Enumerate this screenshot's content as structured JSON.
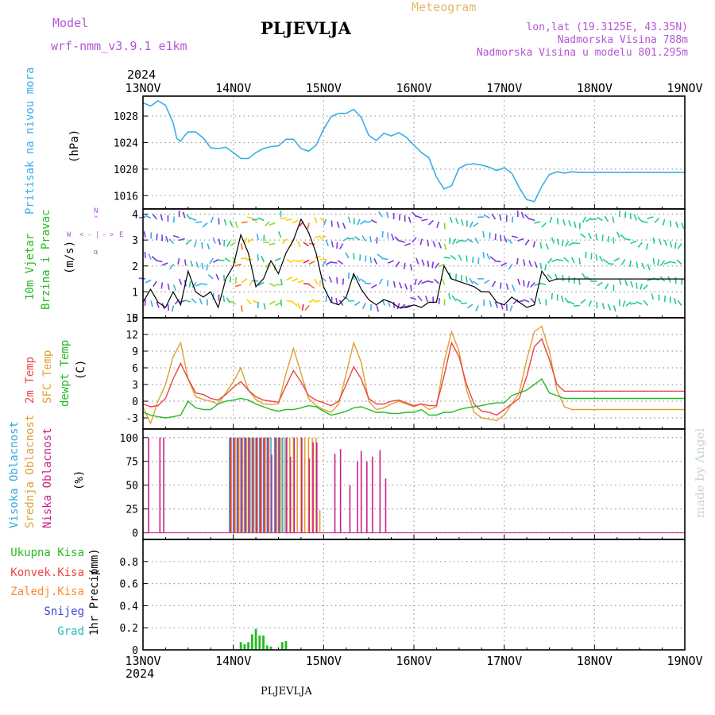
{
  "header": {
    "model_label": "Model",
    "model_name": "wrf-nmm_v3.9.1  e1km",
    "station_title": "PLJEVLJA",
    "meteogram_label": "Meteogram",
    "coords": "lon,lat (19.3125E, 43.35N)",
    "elevation": "Nadmorska Visina 788m",
    "model_elevation": "Nadmorska Visina u modelu 801.295m"
  },
  "time_axis": {
    "year": "2024",
    "dates": [
      "13NOV",
      "14NOV",
      "15NOV",
      "16NOV",
      "17NOV",
      "18NOV",
      "19NOV"
    ]
  },
  "footer": {
    "station": "PLJEVLJA",
    "credit": "made by Angel"
  },
  "wind_legend": {
    "n": "N",
    "e": "E",
    "w": "W",
    "s": "S",
    "arrow_up": "^",
    "arrow_down": "<",
    "sep": "|",
    "dash": "-",
    "arrow_right": ">",
    "alpha": "α"
  },
  "colors": {
    "pressure": "#3aaee6",
    "wind_title": "#22bb22",
    "temp2m": "#ee4444",
    "sfc": "#e0a030",
    "dew": "#22bb22",
    "cloud_high": "#33aadd",
    "cloud_mid": "#e0a030",
    "cloud_low": "#cc2288",
    "precip_total": "#22bb22",
    "precip_conv": "#ee4444",
    "precip_frozen": "#ff8833",
    "precip_snow": "#4444dd",
    "precip_hail": "#22bbbb",
    "model": "#b455d6",
    "meteogram": "#e6b866",
    "credit": "#c8d8c8"
  },
  "chart_data": [
    {
      "type": "line",
      "panel": "pressure",
      "title": "Pritisak na nivou mora",
      "unit": "(hPa)",
      "x_unit": "hours from 13NOV 00UTC",
      "ylim": [
        1014,
        1031
      ],
      "yticks": [
        1016,
        1020,
        1024,
        1028
      ],
      "grid": true,
      "series": [
        {
          "name": "Pritisak na nivou mora",
          "x": [
            0,
            2,
            4,
            6,
            8,
            9,
            10,
            11,
            12,
            14,
            16,
            18,
            20,
            22,
            24,
            26,
            28,
            30,
            32,
            34,
            36,
            38,
            40,
            42,
            44,
            46,
            48,
            50,
            52,
            54,
            56,
            58,
            60,
            62,
            64,
            66,
            68,
            70,
            72,
            74,
            76,
            78,
            80,
            82,
            84,
            86,
            88,
            90,
            92,
            94,
            96,
            98,
            100,
            102,
            104,
            106,
            108,
            110,
            112,
            114,
            116,
            118,
            120,
            122,
            124,
            126,
            128,
            130,
            132,
            134,
            136,
            138,
            140,
            142,
            144
          ],
          "values": [
            1030,
            1029.5,
            1030.3,
            1029.6,
            1027,
            1024.6,
            1024.2,
            1025,
            1025.6,
            1025.6,
            1024.7,
            1023.2,
            1023.1,
            1023.3,
            1022.5,
            1021.6,
            1021.6,
            1022.5,
            1023.1,
            1023.4,
            1023.5,
            1024.5,
            1024.5,
            1023.1,
            1022.7,
            1023.6,
            1026,
            1027.9,
            1028.4,
            1028.4,
            1029,
            1027.8,
            1025.1,
            1024.3,
            1025.4,
            1025,
            1025.5,
            1024.8,
            1023.6,
            1022.5,
            1021.7,
            1018.8,
            1017,
            1017.5,
            1020.1,
            1020.7,
            1020.8,
            1020.6,
            1020.3,
            1019.8,
            1020.2,
            1019.4,
            1017.2,
            1015.4,
            1015.1,
            1017.4,
            1019.2,
            1019.6,
            1019.4,
            1019.6,
            1019.5,
            1019.5,
            1019.5,
            1019.5,
            1019.5,
            1019.5,
            1019.5,
            1019.5,
            1019.5,
            1019.5,
            1019.5,
            1019.5,
            1019.5,
            1019.5,
            1019.5
          ]
        }
      ]
    },
    {
      "type": "line",
      "panel": "wind",
      "title": "10m Vjetar Brzina i Pravac",
      "title_lines": [
        "10m Vjetar",
        "Brzina i Pravac"
      ],
      "unit": "(m/s)",
      "ylim": [
        0,
        4.2
      ],
      "yticks": [
        0,
        1,
        2,
        3,
        4
      ],
      "grid": true,
      "series": [
        {
          "name": "brzina",
          "x": [
            0,
            2,
            4,
            6,
            8,
            10,
            12,
            14,
            16,
            18,
            20,
            22,
            24,
            26,
            28,
            30,
            32,
            34,
            36,
            38,
            40,
            42,
            44,
            46,
            48,
            50,
            52,
            54,
            56,
            58,
            60,
            62,
            64,
            66,
            68,
            70,
            72,
            74,
            76,
            78,
            80,
            82,
            84,
            86,
            88,
            90,
            92,
            94,
            96,
            98,
            100,
            102,
            104,
            106,
            108,
            110,
            112,
            114,
            116,
            118,
            120,
            122,
            124,
            126,
            128,
            130,
            132,
            134,
            136,
            138,
            140,
            142,
            144
          ],
          "values": [
            0.6,
            1.1,
            0.6,
            0.4,
            1.0,
            0.5,
            1.8,
            1.0,
            0.8,
            1.0,
            0.4,
            1.5,
            2.0,
            3.2,
            2.5,
            1.2,
            1.5,
            2.2,
            1.7,
            2.5,
            3.0,
            3.8,
            3.3,
            2.5,
            1.2,
            0.6,
            0.5,
            0.8,
            1.7,
            1.1,
            0.7,
            0.5,
            0.7,
            0.6,
            0.4,
            0.4,
            0.5,
            0.4,
            0.6,
            0.6,
            2.0,
            1.5,
            1.4,
            1.3,
            1.2,
            1.0,
            1.0,
            0.6,
            0.5,
            0.8,
            0.6,
            0.4,
            0.5,
            1.8,
            1.4,
            1.5,
            1.5,
            1.5,
            1.5,
            1.5,
            1.5,
            1.5,
            1.5,
            1.5,
            1.5,
            1.5,
            1.5,
            1.5,
            1.5,
            1.5,
            1.5,
            1.5,
            1.5
          ]
        }
      ]
    },
    {
      "type": "line",
      "panel": "temperature",
      "title": "2m Temp / SFC Temp / dewpt Temp",
      "unit": "(C)",
      "ylim": [
        -5,
        15
      ],
      "yticks": [
        -3,
        0,
        3,
        6,
        9,
        12,
        15
      ],
      "grid": true,
      "series": [
        {
          "name": "2m Temp",
          "x": [
            0,
            2,
            4,
            6,
            8,
            10,
            12,
            14,
            16,
            18,
            20,
            22,
            24,
            26,
            28,
            30,
            32,
            34,
            36,
            38,
            40,
            42,
            44,
            46,
            48,
            50,
            52,
            54,
            56,
            58,
            60,
            62,
            64,
            66,
            68,
            70,
            72,
            74,
            76,
            78,
            80,
            82,
            84,
            86,
            88,
            90,
            92,
            94,
            96,
            98,
            100,
            102,
            104,
            106,
            108,
            110,
            112,
            114,
            116,
            118,
            120,
            122,
            124,
            126,
            128,
            130,
            132,
            134,
            136,
            138,
            140,
            142,
            144
          ],
          "values": [
            -0.5,
            -1,
            -0.8,
            0.5,
            4,
            6.8,
            4,
            1.5,
            1.2,
            0.5,
            0.2,
            1.2,
            2.5,
            3.5,
            2.0,
            0.8,
            0.2,
            0.0,
            -0.2,
            2.8,
            5.5,
            3.5,
            1.0,
            0.2,
            -0.3,
            -0.8,
            0.0,
            3.0,
            6.2,
            4.0,
            0.5,
            -0.5,
            -0.5,
            0.0,
            0.2,
            -0.3,
            -0.8,
            -0.5,
            -0.8,
            -0.8,
            4.5,
            10.5,
            8.0,
            3.0,
            -0.5,
            -1.8,
            -2.0,
            -2.5,
            -1.5,
            -0.5,
            0.5,
            4.5,
            9.8,
            11.2,
            7.5,
            3.0,
            1.8,
            1.8,
            1.8,
            1.8,
            1.8,
            1.8,
            1.8,
            1.8,
            1.8,
            1.8,
            1.8,
            1.8,
            1.8,
            1.8,
            1.8,
            1.8,
            1.8
          ]
        },
        {
          "name": "SFC Temp",
          "x": [
            0,
            2,
            4,
            6,
            8,
            10,
            12,
            14,
            16,
            18,
            20,
            22,
            24,
            26,
            28,
            30,
            32,
            34,
            36,
            38,
            40,
            42,
            44,
            46,
            48,
            50,
            52,
            54,
            56,
            58,
            60,
            62,
            64,
            66,
            68,
            70,
            72,
            74,
            76,
            78,
            80,
            82,
            84,
            86,
            88,
            90,
            92,
            94,
            96,
            98,
            100,
            102,
            104,
            106,
            108,
            110,
            112,
            114,
            116,
            118,
            120,
            122,
            124,
            126,
            128,
            130,
            132,
            134,
            136,
            138,
            140,
            142,
            144
          ],
          "values": [
            -1,
            -4,
            0,
            3,
            8,
            10.5,
            4,
            0.8,
            0.3,
            0.0,
            -0.5,
            1.5,
            3.5,
            6.0,
            2.0,
            0.3,
            -0.5,
            -0.6,
            -0.5,
            5,
            9.5,
            5.0,
            0.5,
            -0.8,
            -1.5,
            -2.0,
            -0.5,
            5.0,
            10.5,
            7.0,
            0.0,
            -1.5,
            -1.2,
            -0.5,
            0.0,
            -0.5,
            -1.0,
            -0.5,
            -1.5,
            -1.0,
            7.0,
            12.5,
            9.0,
            2.0,
            -2.0,
            -3.0,
            -3.2,
            -3.5,
            -2.5,
            -0.5,
            1.5,
            7.5,
            12.5,
            13.5,
            9.0,
            2.0,
            -1.0,
            -1.5,
            -1.5,
            -1.5,
            -1.5,
            -1.5,
            -1.5,
            -1.5,
            -1.5,
            -1.5,
            -1.5,
            -1.5,
            -1.5,
            -1.5,
            -1.5,
            -1.5,
            -1.5
          ]
        },
        {
          "name": "dewpt Temp",
          "x": [
            0,
            2,
            4,
            6,
            8,
            10,
            12,
            14,
            16,
            18,
            20,
            22,
            24,
            26,
            28,
            30,
            32,
            34,
            36,
            38,
            40,
            42,
            44,
            46,
            48,
            50,
            52,
            54,
            56,
            58,
            60,
            62,
            64,
            66,
            68,
            70,
            72,
            74,
            76,
            78,
            80,
            82,
            84,
            86,
            88,
            90,
            92,
            94,
            96,
            98,
            100,
            102,
            104,
            106,
            108,
            110,
            112,
            114,
            116,
            118,
            120,
            122,
            124,
            126,
            128,
            130,
            132,
            134,
            136,
            138,
            140,
            142,
            144
          ],
          "values": [
            -2,
            -2.5,
            -2.8,
            -3,
            -2.8,
            -2.5,
            0,
            -1.2,
            -1.5,
            -1.5,
            -0.5,
            0.0,
            0.2,
            0.5,
            0.2,
            -0.5,
            -1.0,
            -1.5,
            -1.8,
            -1.5,
            -1.5,
            -1.2,
            -0.8,
            -1.0,
            -1.8,
            -2.5,
            -2.2,
            -1.8,
            -1.2,
            -1.0,
            -1.5,
            -2.0,
            -2.0,
            -2.2,
            -2.2,
            -2.0,
            -2.0,
            -1.5,
            -2.5,
            -2.5,
            -2.0,
            -2.0,
            -1.5,
            -1.2,
            -1.0,
            -0.8,
            -0.5,
            -0.3,
            -0.3,
            1.0,
            1.5,
            2.0,
            3.0,
            4.0,
            1.5,
            1.0,
            0.5,
            0.5,
            0.5,
            0.5,
            0.5,
            0.5,
            0.5,
            0.5,
            0.5,
            0.5,
            0.5,
            0.5,
            0.5,
            0.5,
            0.5,
            0.5,
            0.5
          ]
        }
      ]
    },
    {
      "type": "bar",
      "panel": "clouds",
      "title": "Visoka / Srednja / Niska Oblacnost",
      "unit": "(%)",
      "ylim": [
        0,
        100
      ],
      "yticks": [
        0,
        25,
        50,
        75,
        100
      ],
      "grid": true,
      "series": [
        {
          "name": "Visoka Oblacnost",
          "x": [
            23,
            24,
            25,
            26,
            27,
            28,
            29,
            30,
            31,
            32,
            33,
            34,
            35,
            36,
            37,
            38
          ],
          "values": [
            100,
            100,
            100,
            100,
            100,
            100,
            100,
            100,
            100,
            100,
            100,
            100,
            100,
            100,
            100,
            100
          ]
        },
        {
          "name": "Srednja Oblacnost",
          "x": [
            23.5,
            24.5,
            25.5,
            26.5,
            27.5,
            28.5,
            29.5,
            30.5,
            31.5,
            32.5,
            33.5,
            35.5,
            36.5,
            37.5,
            39,
            40,
            41,
            42,
            43,
            44,
            45,
            46,
            47
          ],
          "values": [
            100,
            100,
            100,
            100,
            100,
            100,
            100,
            100,
            100,
            100,
            100,
            100,
            100,
            100,
            100,
            100,
            100,
            100,
            100,
            100,
            100,
            100,
            24
          ]
        },
        {
          "name": "Niska Oblacnost",
          "x": [
            1.5,
            4.5,
            5.5,
            23.2,
            24.2,
            25.2,
            26.2,
            27.2,
            28.2,
            29.2,
            30.2,
            31.2,
            32.2,
            33.2,
            34.2,
            35.2,
            36.2,
            38.2,
            39.2,
            40.2,
            42.2,
            44.2,
            45.2,
            46.2,
            51,
            52.5,
            55,
            57,
            58,
            59.5,
            61,
            63,
            64.5
          ],
          "values": [
            100,
            100,
            100,
            100,
            100,
            100,
            100,
            100,
            100,
            100,
            100,
            100,
            100,
            100,
            82,
            100,
            100,
            100,
            80,
            100,
            100,
            78,
            95,
            95,
            83,
            88,
            50,
            75,
            86,
            75,
            80,
            87,
            57
          ]
        }
      ]
    },
    {
      "type": "bar",
      "panel": "precip",
      "title": "1hr Precip",
      "unit": "(mm)",
      "ylim": [
        0,
        1.0
      ],
      "yticks": [
        0,
        0.2,
        0.4,
        0.6,
        0.8
      ],
      "grid": true,
      "legend": [
        "Ukupna Kisa",
        "Konvek.Kisa",
        "Zaledj.Kisa",
        "Snijeg",
        "Grad"
      ],
      "series": [
        {
          "name": "Ukupna Kisa",
          "x": [
            26,
            27,
            28,
            29,
            30,
            31,
            32,
            33,
            34,
            37,
            38
          ],
          "values": [
            0.07,
            0.05,
            0.07,
            0.14,
            0.19,
            0.13,
            0.13,
            0.04,
            0.03,
            0.07,
            0.08
          ]
        }
      ]
    }
  ]
}
